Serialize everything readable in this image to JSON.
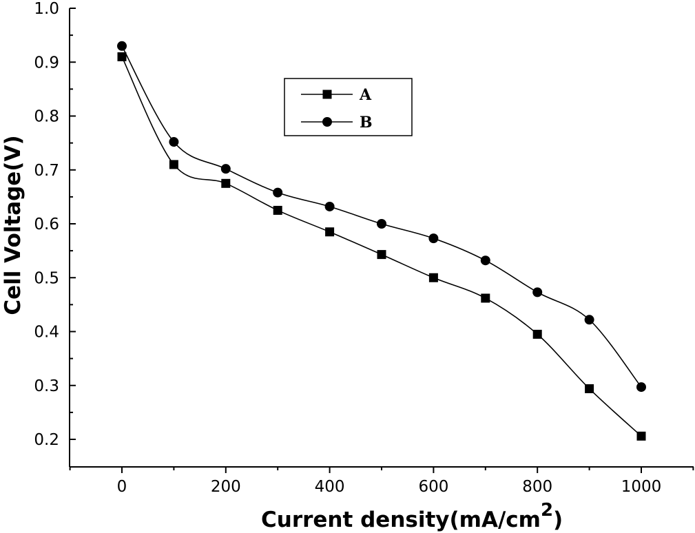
{
  "chart_data": {
    "type": "line",
    "xlabel": "Current density(mA/cm",
    "xlabel_sup": "2",
    "xlabel_end": ")",
    "ylabel": "Cell Voltage(V)",
    "xlim": [
      -100,
      1100
    ],
    "ylim": [
      0.2,
      1.0
    ],
    "x_ticks": [
      0,
      200,
      400,
      600,
      800,
      1000
    ],
    "y_ticks": [
      0.2,
      0.3,
      0.4,
      0.5,
      0.6,
      0.7,
      0.8,
      0.9,
      1.0
    ],
    "x_tick_labels": [
      "0",
      "200",
      "400",
      "600",
      "800",
      "1000"
    ],
    "y_tick_labels": [
      "0.2",
      "0.3",
      "0.4",
      "0.5",
      "0.6",
      "0.7",
      "0.8",
      "0.9",
      "1.0"
    ],
    "legend_position": "top-center",
    "grid": false,
    "x": [
      0,
      100,
      200,
      300,
      400,
      500,
      600,
      700,
      800,
      900,
      1000
    ],
    "series": [
      {
        "name": "A",
        "marker": "square",
        "values": [
          0.91,
          0.71,
          0.675,
          0.625,
          0.585,
          0.543,
          0.5,
          0.462,
          0.395,
          0.294,
          0.206
        ]
      },
      {
        "name": "B",
        "marker": "circle",
        "values": [
          0.93,
          0.752,
          0.702,
          0.658,
          0.632,
          0.6,
          0.573,
          0.532,
          0.473,
          0.422,
          0.297
        ]
      }
    ]
  }
}
